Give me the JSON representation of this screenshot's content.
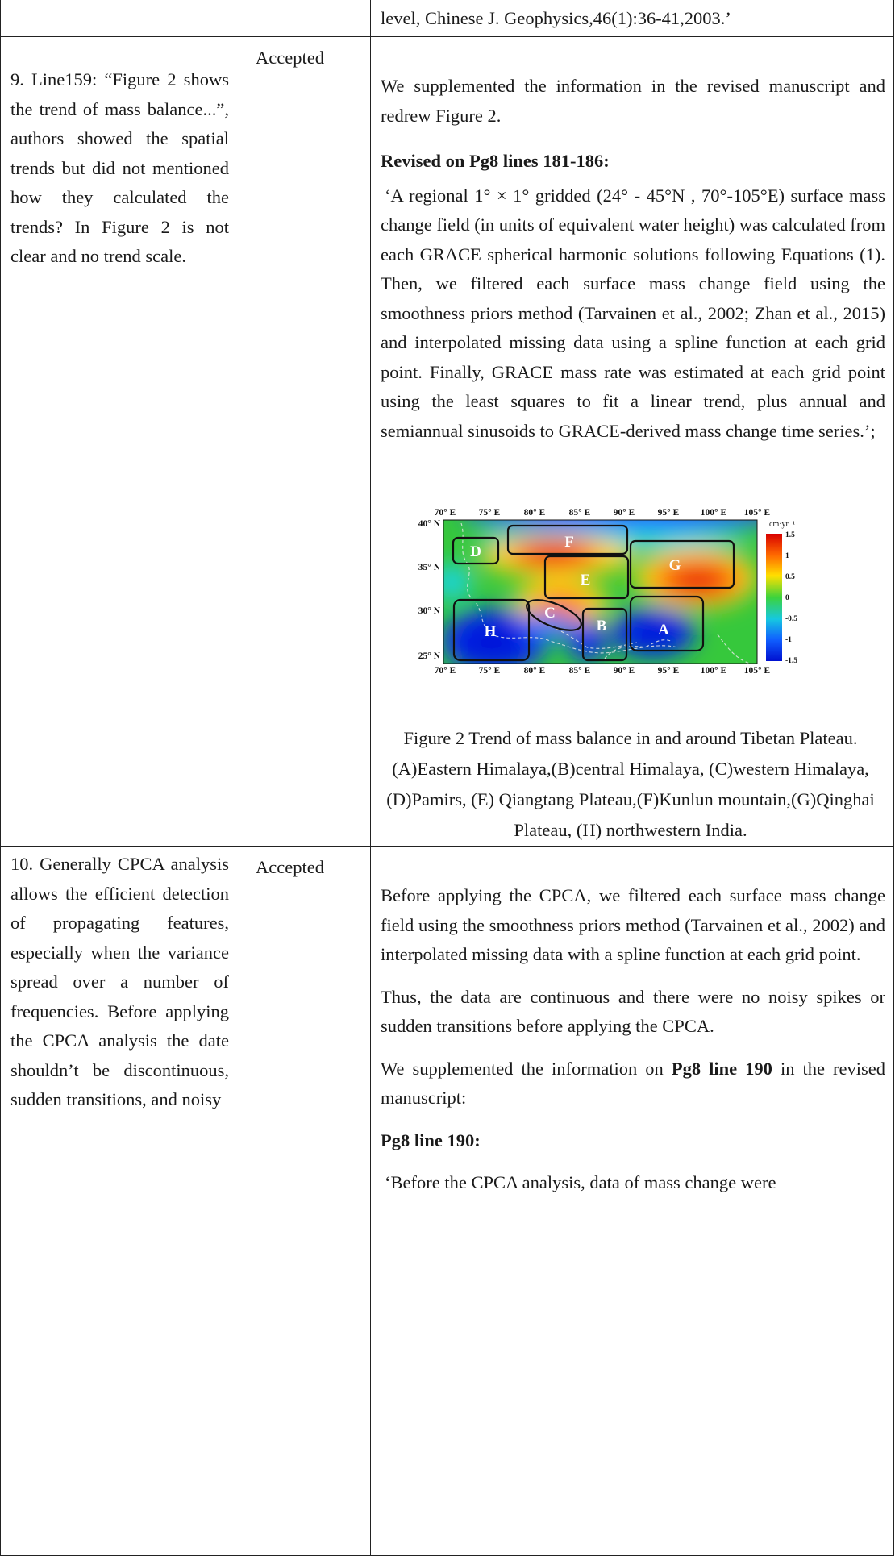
{
  "top_row": {
    "response": "level, Chinese J. Geophysics,46(1):36-41,2003.’"
  },
  "row9": {
    "comment": "9. Line159: “Figure 2 shows the trend of mass balance...”, authors showed the spatial trends but did not mentioned how they calculated the trends? In Figure 2 is not clear and no trend scale.",
    "status": "Accepted",
    "response_intro": "We supplemented the information in the revised manuscript and redrew Figure 2.",
    "revised_heading": "Revised on Pg8 lines 181-186:",
    "revised_text": "‘A regional 1° × 1° gridded (24° - 45°N , 70°-105°E) surface mass change field (in units of equivalent water height) was calculated from each GRACE spherical harmonic solutions following Equations (1). Then, we filtered each surface mass change field using the smoothness priors method (Tarvainen et al., 2002; Zhan et al., 2015) and interpolated missing data using a spline function at each grid point. Finally, GRACE mass rate was estimated at each grid point using the least squares to fit a linear trend, plus annual and semiannual sinusoids to GRACE-derived mass change time series.’;",
    "caption": "Figure 2 Trend of mass balance in and around Tibetan Plateau. (A)Eastern Himalaya,(B)central Himalaya, (C)western Himalaya, (D)Pamirs, (E) Qiangtang Plateau,(F)Kunlun mountain,(G)Qinghai Plateau, (H) northwestern India."
  },
  "figure": {
    "x_ticks": [
      "70° E",
      "75° E",
      "80° E",
      "85° E",
      "90° E",
      "95° E",
      "100° E",
      "105° E"
    ],
    "y_ticks": [
      "40° N",
      "35° N",
      "30° N",
      "25° N"
    ],
    "colorbar_unit": "cm·yr⁻¹",
    "colorbar_ticks": [
      "1.5",
      "1",
      "0.5",
      "0",
      "-0.5",
      "-1",
      "-1.5"
    ],
    "regions": [
      "A",
      "B",
      "C",
      "D",
      "E",
      "F",
      "G",
      "H"
    ],
    "colors": {
      "strong_positive": "#e8180c",
      "positive": "#ffd21a",
      "neutral": "#39c83c",
      "negative": "#0b2cf0"
    }
  },
  "row10": {
    "comment": "10. Generally CPCA analysis allows the efficient detection of propagating features, especially when the variance spread over a number of frequencies. Before applying the CPCA analysis the date shouldn’t be discontinuous, sudden transitions, and noisy",
    "status": "Accepted",
    "p1": "Before applying the CPCA, we filtered each surface mass change field using the smoothness priors method (Tarvainen et al., 2002) and interpolated missing data with a spline function at each grid point.",
    "p2": "Thus, the data are continuous and there were no noisy spikes or sudden transitions before applying the CPCA.",
    "p3_before": "We supplemented the information on ",
    "p3_bold": "Pg8 line 190",
    "p3_after": " in the revised manuscript:",
    "heading": "Pg8 line 190:",
    "p4": "‘Before the CPCA analysis, data of mass change were"
  }
}
